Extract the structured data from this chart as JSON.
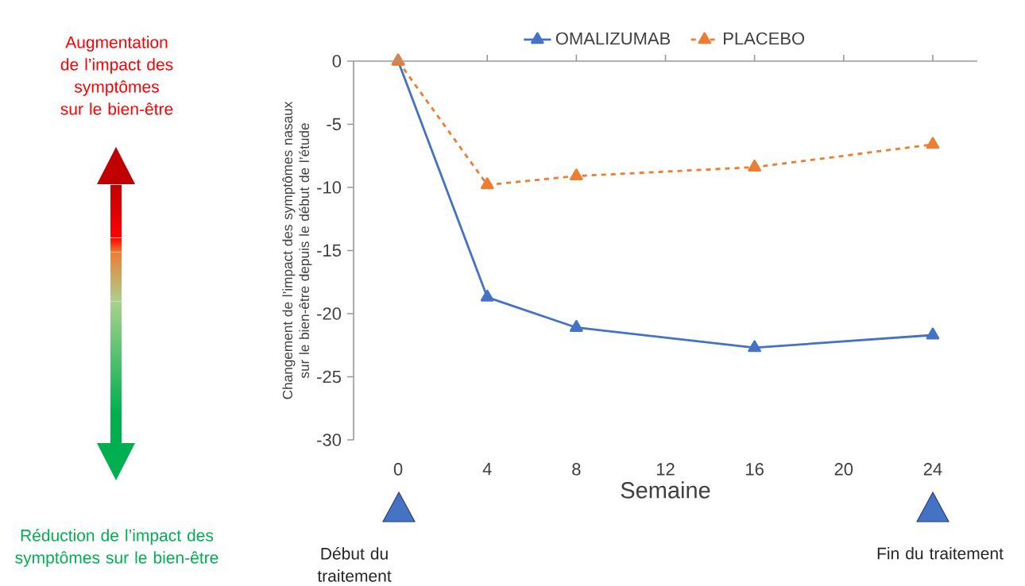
{
  "chart_data": {
    "type": "line",
    "xlabel": "Semaine",
    "ylabel": "Changement de l’impact des symptômes nasaux sur le bien-être depuis le début de l’étude",
    "x": [
      0,
      4,
      8,
      16,
      24
    ],
    "series": [
      {
        "name": "OMALIZUMAB",
        "color": "#4472c4",
        "values": [
          0,
          -18.7,
          -21.1,
          -22.7,
          -21.7
        ],
        "line_style": "solid"
      },
      {
        "name": "PLACEBO",
        "color": "#ed7d31",
        "values": [
          0,
          -9.8,
          -9.1,
          -8.4,
          -6.6
        ],
        "line_style": "dashed"
      }
    ],
    "xlim": [
      -2,
      26
    ],
    "xticks": [
      0,
      4,
      8,
      12,
      16,
      20,
      24
    ],
    "ylim": [
      -30,
      0
    ],
    "yticks": [
      -30,
      -25,
      -20,
      -15,
      -10,
      -5,
      0
    ],
    "marker": "triangle",
    "legend": "top",
    "grid": false,
    "annotations": [
      "Augmentation de l’impact des symptômes sur le bien-être",
      "Réduction de l’impact des symptômes sur le bien-être",
      "Début du traitement",
      "Fin du traitement"
    ]
  }
}
